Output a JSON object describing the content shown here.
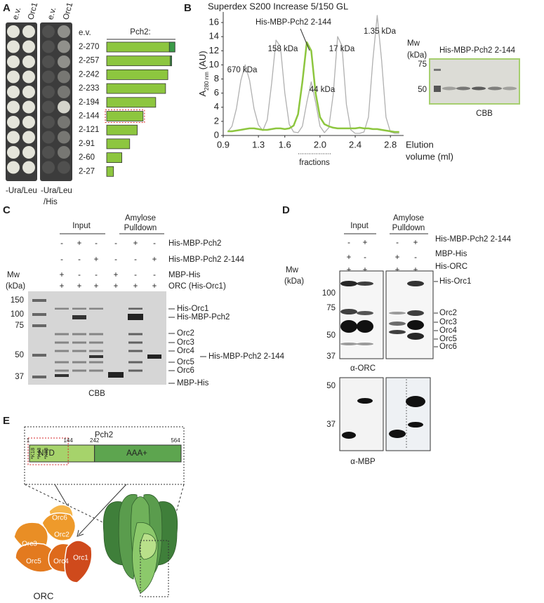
{
  "panel_labels": {
    "a": "A",
    "b": "B",
    "c": "C",
    "d": "D",
    "e": "E"
  },
  "panel_a": {
    "plate_left_columns": [
      "e.v.",
      "Orc1"
    ],
    "plate_right_columns": [
      "e.v.",
      "Orc1"
    ],
    "ev_label": "e.v.",
    "header": "Pch2:",
    "constructs": [
      "2-270",
      "2-257",
      "2-242",
      "2-233",
      "2-194",
      "2-144",
      "2-121",
      "2-91",
      "2-60",
      "2-27"
    ],
    "media_left": "-Ura/Leu",
    "media_right": [
      "-Ura/Leu",
      "/His"
    ]
  },
  "panel_b": {
    "chart_data": {
      "type": "line",
      "title": "Superdex S200 Increase 5/150 GL",
      "y_label": {
        "main": "A",
        "sub": "280 nm",
        "unit": "(AU)"
      },
      "x_label": [
        "Elution",
        "volume (ml)"
      ],
      "x": [
        0.95,
        1.0,
        1.05,
        1.1,
        1.15,
        1.2,
        1.25,
        1.3,
        1.35,
        1.4,
        1.45,
        1.5,
        1.55,
        1.6,
        1.65,
        1.7,
        1.75,
        1.8,
        1.85,
        1.9,
        1.95,
        2.0,
        2.05,
        2.1,
        2.15,
        2.2,
        2.25,
        2.3,
        2.35,
        2.4,
        2.45,
        2.5,
        2.55,
        2.6,
        2.65,
        2.7,
        2.75,
        2.8,
        2.85,
        2.9
      ],
      "series": [
        {
          "color": "#b0b0b0",
          "values": [
            0.5,
            1.3,
            3.8,
            7.8,
            10.0,
            7.8,
            3.8,
            1.5,
            0.7,
            2.2,
            7.4,
            13.5,
            12.6,
            6.0,
            1.6,
            0.5,
            0.4,
            1.3,
            4.7,
            7.6,
            4.7,
            1.3,
            0.4,
            1.1,
            5.8,
            14.0,
            12.7,
            4.4,
            0.8,
            0.3,
            0.3,
            0.5,
            2.6,
            10.6,
            17.0,
            10.6,
            2.6,
            0.5,
            0.3,
            0.3
          ]
        },
        {
          "color": "#8dc63f",
          "values": [
            0.6,
            0.6,
            0.7,
            0.8,
            0.9,
            1.0,
            1.0,
            0.9,
            0.8,
            0.8,
            0.9,
            1.0,
            1.0,
            0.9,
            1.0,
            1.4,
            3.0,
            7.6,
            13.2,
            12.0,
            6.0,
            2.6,
            1.6,
            1.3,
            1.1,
            1.0,
            1.0,
            1.0,
            1.0,
            1.0,
            1.1,
            1.0,
            1.0,
            0.9,
            0.9,
            0.8,
            0.7,
            0.6,
            0.5,
            0.5
          ]
        }
      ],
      "xlim": [
        0.9,
        2.95
      ],
      "ylim": [
        0,
        17.5
      ],
      "xticks": [
        0.9,
        1.3,
        1.6,
        {
          "value": 2,
          "label": "2.0"
        },
        2.4,
        2.8
      ],
      "yticks": [
        0,
        2,
        4,
        6,
        8,
        10,
        12,
        14,
        16
      ],
      "annotations": [
        "670 kDa",
        "158 kDa",
        "His-MBP-Pch2 2-144",
        "44 kDa",
        "17 kDa",
        "1.35 kDa"
      ],
      "fractions_label": "fractions"
    },
    "gel": {
      "mw_label": [
        "Mw",
        "(kDa)"
      ],
      "title": "His-MBP-Pch2 2-144",
      "markers": [
        75,
        50
      ],
      "stain": "CBB"
    }
  },
  "panel_c": {
    "groups": [
      [
        "Input"
      ],
      [
        "Amylose",
        "Pulldown"
      ]
    ],
    "rows": [
      {
        "label": "His-MBP-Pch2",
        "signs": [
          "-",
          "+",
          "-",
          "-",
          "+",
          "-"
        ]
      },
      {
        "label": "His-MBP-Pch2 2-144",
        "signs": [
          "-",
          "-",
          "+",
          "-",
          "-",
          "+"
        ]
      },
      {
        "label": "MBP-His",
        "signs": [
          "+",
          "-",
          "-",
          "+",
          "-",
          "-"
        ]
      },
      {
        "label": "ORC (His-Orc1)",
        "signs": [
          "+",
          "+",
          "+",
          "+",
          "+",
          "+"
        ]
      }
    ],
    "mw_label": [
      "Mw",
      "(kDa)"
    ],
    "markers": [
      150,
      100,
      75,
      50,
      37
    ],
    "bands": [
      "His-Orc1",
      "His-MBP-Pch2",
      "Orc2",
      "Orc3",
      "Orc4",
      "Orc5",
      "Orc6",
      "His-MBP-Pch2 2-144",
      "MBP-His"
    ],
    "stain": "CBB"
  },
  "panel_d": {
    "groups": [
      [
        "Input"
      ],
      [
        "Amylose",
        "Pulldown"
      ]
    ],
    "rows": [
      {
        "label": "His-MBP-Pch2 2-144",
        "signs": [
          "-",
          "+",
          "-",
          "+"
        ]
      },
      {
        "label": "MBP-His",
        "signs": [
          "+",
          "-",
          "+",
          "-"
        ]
      },
      {
        "label": "His-ORC",
        "signs": [
          "+",
          "+",
          "+",
          "+"
        ]
      }
    ],
    "mw_label": [
      "Mw",
      "(kDa)"
    ],
    "markers_top": [
      100,
      75,
      50,
      37
    ],
    "bands": [
      "His-Orc1",
      "Orc2",
      "Orc3",
      "Orc4",
      "Orc5",
      "Orc6"
    ],
    "antibody_top": "α-ORC",
    "markers_bottom": [
      50,
      37
    ],
    "antibody_bottom": "α-MBP"
  },
  "panel_e": {
    "title": "Pch2",
    "positions": [
      "1",
      "144",
      "242",
      "564"
    ],
    "domains": [
      "NTD",
      "AAA+"
    ],
    "sites": [
      "*K18",
      "*K43",
      "*K88"
    ],
    "orc_subunits": [
      "Orc6",
      "Orc2",
      "Orc3",
      "Orc5",
      "Orc4",
      "Orc1"
    ],
    "complex": "ORC"
  }
}
